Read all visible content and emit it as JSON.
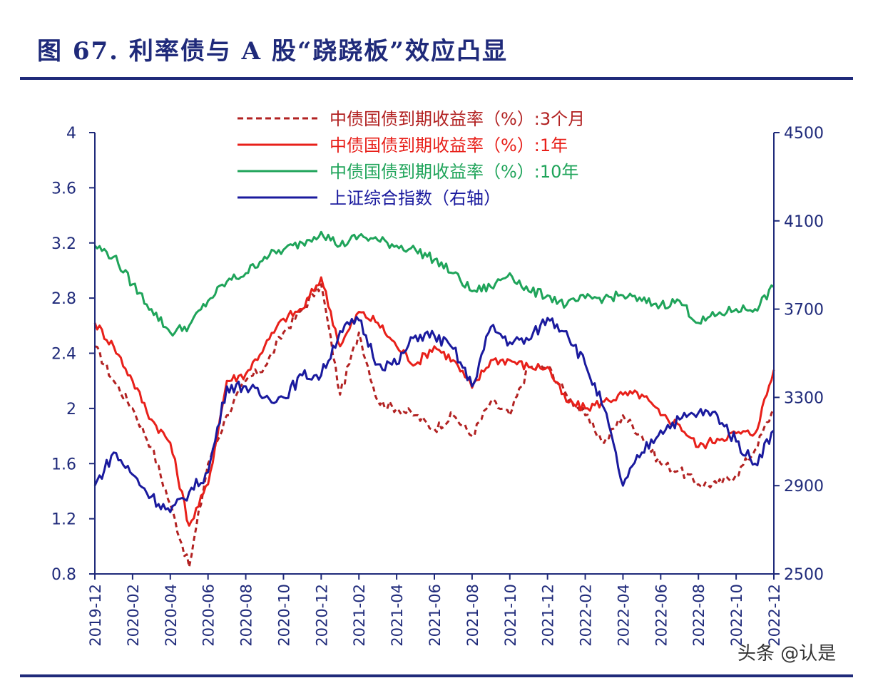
{
  "figure": {
    "title": "图 67. 利率债与 A 股“跷跷板”效应凸显",
    "watermark": "头条 @认是"
  },
  "chart_data": {
    "type": "line",
    "x": [
      "2019-12",
      "2020-01",
      "2020-02",
      "2020-03",
      "2020-04",
      "2020-05",
      "2020-06",
      "2020-07",
      "2020-08",
      "2020-09",
      "2020-10",
      "2020-11",
      "2020-12",
      "2021-01",
      "2021-02",
      "2021-03",
      "2021-04",
      "2021-05",
      "2021-06",
      "2021-07",
      "2021-08",
      "2021-09",
      "2021-10",
      "2021-11",
      "2021-12",
      "2022-01",
      "2022-02",
      "2022-03",
      "2022-04",
      "2022-05",
      "2022-06",
      "2022-07",
      "2022-08",
      "2022-09",
      "2022-10",
      "2022-11",
      "2022-12"
    ],
    "x_ticks": [
      "2019-12",
      "2020-02",
      "2020-04",
      "2020-06",
      "2020-08",
      "2020-10",
      "2020-12",
      "2021-02",
      "2021-04",
      "2021-06",
      "2021-08",
      "2021-10",
      "2021-12",
      "2022-02",
      "2022-04",
      "2022-06",
      "2022-08",
      "2022-10",
      "2022-12"
    ],
    "y_left": {
      "range": [
        0.8,
        4
      ],
      "ticks": [
        "0.8",
        "1.2",
        "1.6",
        "2",
        "2.4",
        "2.8",
        "3.2",
        "3.6",
        "4"
      ]
    },
    "y_right": {
      "range": [
        2500,
        4500
      ],
      "ticks": [
        "2500",
        "2900",
        "3300",
        "3700",
        "4100",
        "4500"
      ]
    },
    "series": [
      {
        "name": "中债国债到期收益率（%）:3个月",
        "axis": "left",
        "color": "#b22222",
        "dash": true,
        "values": [
          2.45,
          2.2,
          2.0,
          1.72,
          1.3,
          0.85,
          1.6,
          1.95,
          2.2,
          2.3,
          2.55,
          2.72,
          2.9,
          2.1,
          2.55,
          2.05,
          2.0,
          1.95,
          1.85,
          1.95,
          1.8,
          2.05,
          1.95,
          2.3,
          2.3,
          2.1,
          1.95,
          1.75,
          1.95,
          1.8,
          1.6,
          1.55,
          1.45,
          1.45,
          1.52,
          1.7,
          2.0
        ]
      },
      {
        "name": "中债国债到期收益率（%）:1年",
        "axis": "left",
        "color": "#e8201a",
        "dash": false,
        "values": [
          2.62,
          2.45,
          2.2,
          1.92,
          1.75,
          1.15,
          1.45,
          2.2,
          2.25,
          2.45,
          2.65,
          2.72,
          2.95,
          2.45,
          2.7,
          2.62,
          2.45,
          2.32,
          2.45,
          2.35,
          2.15,
          2.35,
          2.35,
          2.3,
          2.3,
          2.05,
          2.0,
          2.05,
          2.1,
          2.1,
          1.95,
          1.88,
          1.72,
          1.78,
          1.82,
          1.82,
          2.28
        ]
      },
      {
        "name": "中债国债到期收益率（%）:10年",
        "axis": "left",
        "color": "#1fa45a",
        "dash": false,
        "values": [
          3.18,
          3.1,
          2.9,
          2.72,
          2.55,
          2.6,
          2.78,
          2.92,
          2.98,
          3.1,
          3.15,
          3.2,
          3.28,
          3.18,
          3.25,
          3.22,
          3.18,
          3.15,
          3.08,
          2.98,
          2.85,
          2.88,
          2.98,
          2.85,
          2.82,
          2.75,
          2.8,
          2.8,
          2.82,
          2.78,
          2.75,
          2.78,
          2.62,
          2.68,
          2.72,
          2.72,
          2.88
        ]
      },
      {
        "name": "上证综合指数（右轴）",
        "axis": "right",
        "color": "#1a1a9e",
        "dash": false,
        "values": [
          2900,
          3050,
          2950,
          2850,
          2780,
          2870,
          2960,
          3350,
          3350,
          3300,
          3300,
          3400,
          3400,
          3600,
          3650,
          3450,
          3450,
          3580,
          3580,
          3520,
          3350,
          3620,
          3550,
          3560,
          3660,
          3600,
          3450,
          3250,
          2900,
          3050,
          3150,
          3200,
          3230,
          3220,
          3100,
          3000,
          3150
        ]
      }
    ],
    "legend_position": "top-center",
    "grid": false
  }
}
